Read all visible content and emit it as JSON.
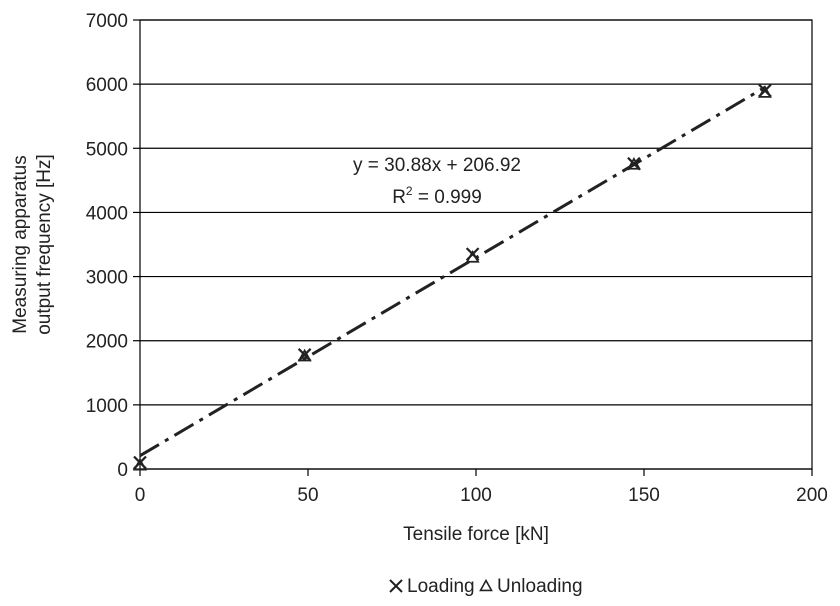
{
  "chart_data": {
    "type": "scatter",
    "xlabel": "Tensile force [kN]",
    "ylabel_lines": [
      "Measuring apparatus",
      "output frequency [Hz]"
    ],
    "xlim": [
      0,
      200
    ],
    "ylim": [
      0,
      7000
    ],
    "xticks": [
      0,
      50,
      100,
      150,
      200
    ],
    "yticks": [
      0,
      1000,
      2000,
      3000,
      4000,
      5000,
      6000,
      7000
    ],
    "grid": "horizontal",
    "series": [
      {
        "name": "Loading",
        "marker": "x",
        "points": [
          [
            0,
            100
          ],
          [
            49,
            1780
          ],
          [
            99,
            3350
          ],
          [
            147,
            4760
          ],
          [
            186,
            5900
          ]
        ]
      },
      {
        "name": "Unloading",
        "marker": "triangle",
        "points": [
          [
            0,
            60
          ],
          [
            49,
            1760
          ],
          [
            99,
            3300
          ],
          [
            147,
            4750
          ],
          [
            186,
            5870
          ]
        ]
      }
    ],
    "trendline": {
      "slope": 30.88,
      "intercept": 206.92,
      "x_range": [
        0,
        186
      ],
      "style": "dash-dot"
    },
    "annotation": {
      "equation": "y = 30.88x + 206.92",
      "r2_prefix": "R",
      "r2_sup": "2",
      "r2_value": " = 0.999"
    },
    "legend_position": "bottom-center",
    "colors": {
      "marks": "#222222",
      "grid": "#000000"
    }
  }
}
